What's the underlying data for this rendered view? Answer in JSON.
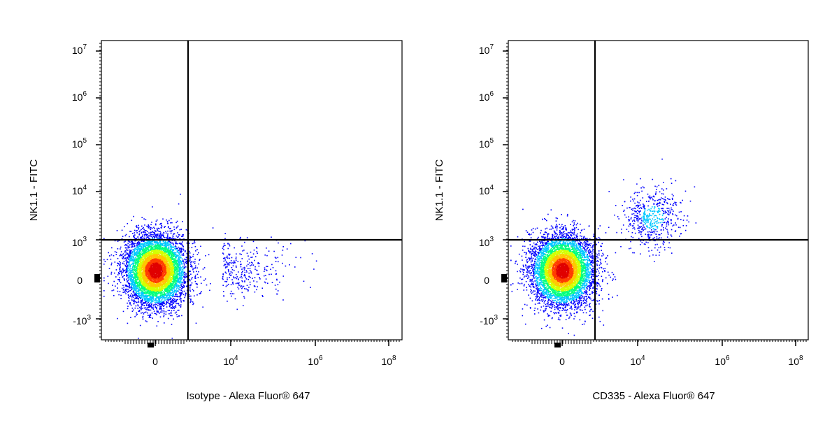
{
  "chart_data": [
    {
      "type": "scatter",
      "title": "",
      "xlabel": "Isotype - Alexa Fluor® 647",
      "ylabel": "NK1.1 - FITC",
      "x_scale": "biexponential",
      "y_scale": "biexponential",
      "x_ticks": [
        {
          "base": "0",
          "exp": ""
        },
        {
          "base": "10",
          "exp": "4"
        },
        {
          "base": "10",
          "exp": "6"
        },
        {
          "base": "10",
          "exp": "8"
        }
      ],
      "y_ticks": [
        {
          "base": "-10",
          "exp": "3"
        },
        {
          "base": "0",
          "exp": ""
        },
        {
          "base": "10",
          "exp": "3"
        },
        {
          "base": "10",
          "exp": "4"
        },
        {
          "base": "10",
          "exp": "5"
        },
        {
          "base": "10",
          "exp": "6"
        },
        {
          "base": "10",
          "exp": "7"
        }
      ],
      "quadrant_gate": {
        "x": 1000,
        "y": 1000
      },
      "populations": [
        {
          "name": "",
          "center": {
            "x": 0,
            "y": 50
          },
          "events": 7000
        },
        {
          "name": "",
          "center": {
            "x": 4000,
            "y": 50
          },
          "events": 300
        }
      ],
      "color_scale": [
        "#0000ff",
        "#00c8ff",
        "#00ff7f",
        "#d4ff00",
        "#ffc800",
        "#ff3c00",
        "#e00000"
      ]
    },
    {
      "type": "scatter",
      "title": "",
      "xlabel": "CD335 - Alexa Fluor® 647",
      "ylabel": "NK1.1 - FITC",
      "x_scale": "biexponential",
      "y_scale": "biexponential",
      "x_ticks": [
        {
          "base": "0",
          "exp": ""
        },
        {
          "base": "10",
          "exp": "4"
        },
        {
          "base": "10",
          "exp": "6"
        },
        {
          "base": "10",
          "exp": "8"
        }
      ],
      "y_ticks": [
        {
          "base": "-10",
          "exp": "3"
        },
        {
          "base": "0",
          "exp": ""
        },
        {
          "base": "10",
          "exp": "3"
        },
        {
          "base": "10",
          "exp": "4"
        },
        {
          "base": "10",
          "exp": "5"
        },
        {
          "base": "10",
          "exp": "6"
        },
        {
          "base": "10",
          "exp": "7"
        }
      ],
      "quadrant_gate": {
        "x": 1000,
        "y": 1000
      },
      "populations": [
        {
          "name": "",
          "center": {
            "x": 0,
            "y": 50
          },
          "events": 6500
        },
        {
          "name": "",
          "center": {
            "x": 15000,
            "y": 1500
          },
          "events": 550
        }
      ],
      "color_scale": [
        "#0000ff",
        "#00c8ff",
        "#00ff7f",
        "#d4ff00",
        "#ffc800",
        "#ff3c00",
        "#e00000"
      ]
    }
  ]
}
